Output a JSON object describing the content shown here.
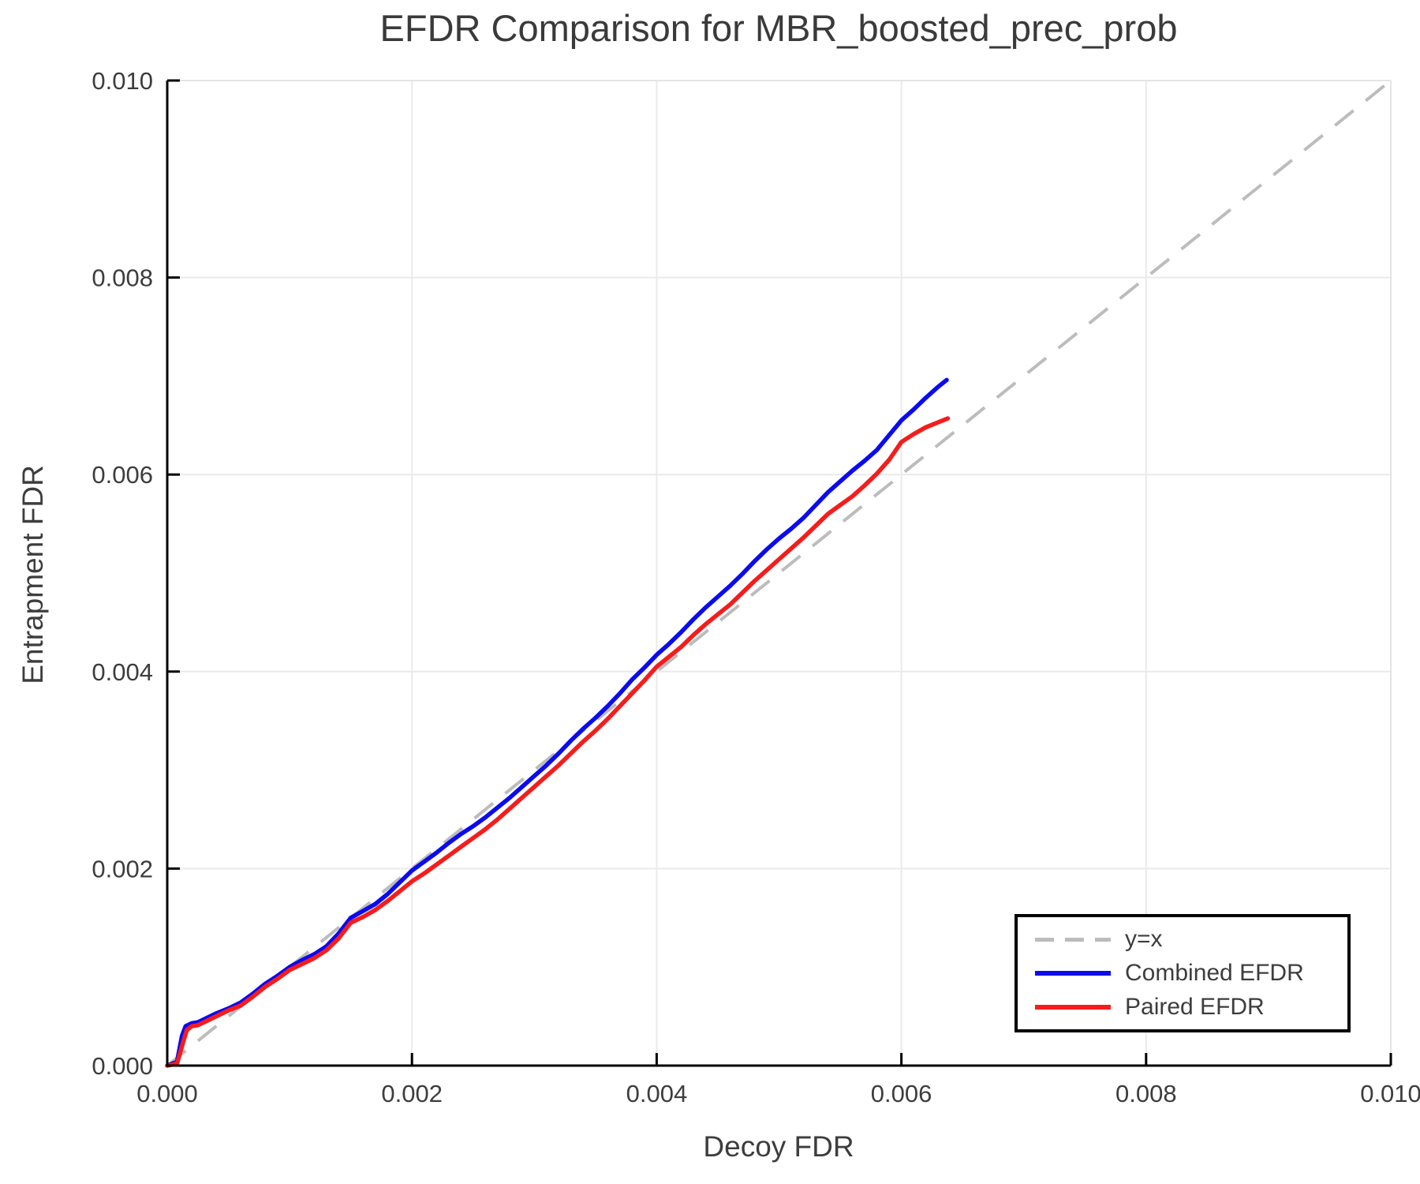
{
  "chart_data": {
    "type": "line",
    "title": "EFDR Comparison for MBR_boosted_prec_prob",
    "xlabel": "Decoy FDR",
    "ylabel": "Entrapment FDR",
    "xlim": [
      0.0,
      0.01
    ],
    "ylim": [
      0.0,
      0.01
    ],
    "grid": true,
    "xticks": {
      "values": [
        0.0,
        0.002,
        0.004,
        0.006,
        0.008,
        0.01
      ],
      "labels": [
        "0.000",
        "0.002",
        "0.004",
        "0.006",
        "0.008",
        "0.010"
      ]
    },
    "yticks": {
      "values": [
        0.0,
        0.002,
        0.004,
        0.006,
        0.008,
        0.01
      ],
      "labels": [
        "0.000",
        "0.002",
        "0.004",
        "0.006",
        "0.008",
        "0.010"
      ]
    },
    "diagonal": {
      "label": "y=x",
      "color": "#bcbcbc",
      "dashed": true,
      "from": [
        0.0,
        0.0
      ],
      "to": [
        0.01,
        0.01
      ]
    },
    "legend": {
      "position": "lower right",
      "entries": [
        {
          "label": "y=x",
          "color": "#bcbcbc",
          "dashed": true
        },
        {
          "label": "Combined EFDR",
          "color": "#0b0bf0",
          "dashed": false
        },
        {
          "label": "Paired EFDR",
          "color": "#f61c1c",
          "dashed": false
        }
      ]
    },
    "series": [
      {
        "name": "Combined EFDR",
        "color": "#0b0bf0",
        "points": [
          [
            0.0,
            0.0
          ],
          [
            8e-05,
            4e-05
          ],
          [
            0.00012,
            0.0003
          ],
          [
            0.00015,
            0.0004
          ],
          [
            0.0002,
            0.00043
          ],
          [
            0.00025,
            0.00044
          ],
          [
            0.0003,
            0.00047
          ],
          [
            0.0004,
            0.00053
          ],
          [
            0.0005,
            0.00058
          ],
          [
            0.0006,
            0.00064
          ],
          [
            0.0007,
            0.00073
          ],
          [
            0.0008,
            0.00083
          ],
          [
            0.0009,
            0.00091
          ],
          [
            0.001,
            0.001
          ],
          [
            0.0011,
            0.00107
          ],
          [
            0.0012,
            0.00113
          ],
          [
            0.0013,
            0.00121
          ],
          [
            0.0014,
            0.00134
          ],
          [
            0.0015,
            0.0015
          ],
          [
            0.0016,
            0.00157
          ],
          [
            0.0017,
            0.00164
          ],
          [
            0.0018,
            0.00174
          ],
          [
            0.0019,
            0.00186
          ],
          [
            0.002,
            0.00198
          ],
          [
            0.0021,
            0.00207
          ],
          [
            0.0022,
            0.00216
          ],
          [
            0.0023,
            0.00226
          ],
          [
            0.0024,
            0.00235
          ],
          [
            0.0025,
            0.00243
          ],
          [
            0.0026,
            0.00252
          ],
          [
            0.0027,
            0.00262
          ],
          [
            0.0028,
            0.00272
          ],
          [
            0.0029,
            0.00283
          ],
          [
            0.003,
            0.00294
          ],
          [
            0.0031,
            0.00305
          ],
          [
            0.0032,
            0.00317
          ],
          [
            0.0033,
            0.0033
          ],
          [
            0.0034,
            0.00342
          ],
          [
            0.0035,
            0.00353
          ],
          [
            0.0036,
            0.00365
          ],
          [
            0.0037,
            0.00378
          ],
          [
            0.0038,
            0.00392
          ],
          [
            0.0039,
            0.00404
          ],
          [
            0.004,
            0.00417
          ],
          [
            0.0041,
            0.00428
          ],
          [
            0.0042,
            0.0044
          ],
          [
            0.0043,
            0.00453
          ],
          [
            0.0044,
            0.00465
          ],
          [
            0.0045,
            0.00476
          ],
          [
            0.0046,
            0.00487
          ],
          [
            0.0047,
            0.00499
          ],
          [
            0.0048,
            0.00512
          ],
          [
            0.0049,
            0.00524
          ],
          [
            0.005,
            0.00535
          ],
          [
            0.0051,
            0.00545
          ],
          [
            0.0052,
            0.00556
          ],
          [
            0.0053,
            0.00569
          ],
          [
            0.0054,
            0.00582
          ],
          [
            0.0055,
            0.00593
          ],
          [
            0.0056,
            0.00604
          ],
          [
            0.0057,
            0.00614
          ],
          [
            0.0058,
            0.00625
          ],
          [
            0.0059,
            0.0064
          ],
          [
            0.006,
            0.00655
          ],
          [
            0.0061,
            0.00666
          ],
          [
            0.0062,
            0.00678
          ],
          [
            0.0063,
            0.00689
          ],
          [
            0.00637,
            0.00696
          ]
        ]
      },
      {
        "name": "Paired EFDR",
        "color": "#f61c1c",
        "points": [
          [
            0.0,
            0.0
          ],
          [
            8e-05,
            2e-05
          ],
          [
            0.00013,
            0.00024
          ],
          [
            0.00016,
            0.00036
          ],
          [
            0.0002,
            0.0004
          ],
          [
            0.00025,
            0.00041
          ],
          [
            0.0003,
            0.00044
          ],
          [
            0.0004,
            0.0005
          ],
          [
            0.0005,
            0.00056
          ],
          [
            0.0006,
            0.00061
          ],
          [
            0.0007,
            0.0007
          ],
          [
            0.0008,
            0.0008
          ],
          [
            0.0009,
            0.00088
          ],
          [
            0.001,
            0.00097
          ],
          [
            0.0011,
            0.00103
          ],
          [
            0.0012,
            0.00109
          ],
          [
            0.0013,
            0.00117
          ],
          [
            0.0014,
            0.00129
          ],
          [
            0.0015,
            0.00145
          ],
          [
            0.0016,
            0.00151
          ],
          [
            0.0017,
            0.00158
          ],
          [
            0.0018,
            0.00167
          ],
          [
            0.0019,
            0.00177
          ],
          [
            0.002,
            0.00187
          ],
          [
            0.0021,
            0.00195
          ],
          [
            0.0022,
            0.00204
          ],
          [
            0.0023,
            0.00213
          ],
          [
            0.0024,
            0.00222
          ],
          [
            0.0025,
            0.00231
          ],
          [
            0.0026,
            0.0024
          ],
          [
            0.0027,
            0.0025
          ],
          [
            0.0028,
            0.00261
          ],
          [
            0.0029,
            0.00272
          ],
          [
            0.003,
            0.00283
          ],
          [
            0.0031,
            0.00294
          ],
          [
            0.0032,
            0.00305
          ],
          [
            0.0033,
            0.00317
          ],
          [
            0.0034,
            0.00329
          ],
          [
            0.0035,
            0.0034
          ],
          [
            0.0036,
            0.00352
          ],
          [
            0.0037,
            0.00365
          ],
          [
            0.0038,
            0.00378
          ],
          [
            0.0039,
            0.00391
          ],
          [
            0.004,
            0.00405
          ],
          [
            0.0041,
            0.00415
          ],
          [
            0.0042,
            0.00425
          ],
          [
            0.0043,
            0.00437
          ],
          [
            0.0044,
            0.00448
          ],
          [
            0.0045,
            0.00458
          ],
          [
            0.0046,
            0.00468
          ],
          [
            0.0047,
            0.0048
          ],
          [
            0.0048,
            0.00492
          ],
          [
            0.0049,
            0.00503
          ],
          [
            0.005,
            0.00514
          ],
          [
            0.0051,
            0.00525
          ],
          [
            0.0052,
            0.00536
          ],
          [
            0.0053,
            0.00548
          ],
          [
            0.0054,
            0.0056
          ],
          [
            0.0055,
            0.00569
          ],
          [
            0.0056,
            0.00578
          ],
          [
            0.0057,
            0.00589
          ],
          [
            0.0058,
            0.00601
          ],
          [
            0.0059,
            0.00615
          ],
          [
            0.006,
            0.00633
          ],
          [
            0.0061,
            0.00641
          ],
          [
            0.0062,
            0.00648
          ],
          [
            0.0063,
            0.00653
          ],
          [
            0.00638,
            0.00657
          ]
        ]
      }
    ],
    "style": {
      "grid_color": "#eaeaea",
      "frame_color": "#e4e4e4",
      "spine_color": "#000000",
      "tick_color": "#000000",
      "text_color": "#3d3d3d",
      "line_width": 5.5,
      "diagonal_width": 4
    }
  }
}
